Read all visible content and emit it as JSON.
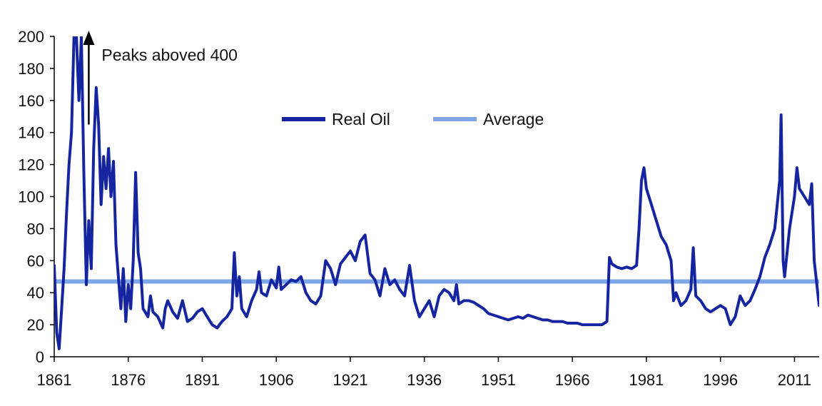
{
  "chart_data": {
    "type": "line",
    "title": "",
    "xlabel": "",
    "ylabel": "",
    "xlim": [
      1861,
      2016
    ],
    "ylim": [
      0,
      200
    ],
    "x_ticks": [
      1861,
      1876,
      1891,
      1906,
      1921,
      1936,
      1951,
      1966,
      1981,
      1996,
      2011
    ],
    "y_ticks": [
      0,
      20,
      40,
      60,
      80,
      100,
      120,
      140,
      160,
      180,
      200
    ],
    "grid": false,
    "legend": {
      "placement": "top-center"
    },
    "annotation": {
      "text": "Peaks aboved 400",
      "x": 1868,
      "y": 145,
      "arrow": "up"
    },
    "series": [
      {
        "name": "Real Oil",
        "color": "#1525a0",
        "points": [
          [
            1861,
            57
          ],
          [
            1861.5,
            15
          ],
          [
            1862,
            5
          ],
          [
            1862.5,
            30
          ],
          [
            1863,
            55
          ],
          [
            1863.5,
            90
          ],
          [
            1864,
            120
          ],
          [
            1864.5,
            140
          ],
          [
            1865,
            200
          ],
          [
            1865.5,
            200
          ],
          [
            1866,
            160
          ],
          [
            1866.5,
            200
          ],
          [
            1867,
            115
          ],
          [
            1867.5,
            45
          ],
          [
            1868,
            85
          ],
          [
            1868.5,
            55
          ],
          [
            1869,
            130
          ],
          [
            1869.5,
            168
          ],
          [
            1870,
            145
          ],
          [
            1870.5,
            95
          ],
          [
            1871,
            125
          ],
          [
            1871.5,
            105
          ],
          [
            1872,
            130
          ],
          [
            1872.5,
            100
          ],
          [
            1873,
            122
          ],
          [
            1873.5,
            70
          ],
          [
            1874,
            50
          ],
          [
            1874.5,
            30
          ],
          [
            1875,
            55
          ],
          [
            1875.5,
            22
          ],
          [
            1876,
            45
          ],
          [
            1876.5,
            30
          ],
          [
            1877,
            60
          ],
          [
            1877.5,
            115
          ],
          [
            1878,
            65
          ],
          [
            1878.5,
            55
          ],
          [
            1879,
            30
          ],
          [
            1880,
            25
          ],
          [
            1880.5,
            38
          ],
          [
            1881,
            28
          ],
          [
            1882,
            25
          ],
          [
            1883,
            18
          ],
          [
            1883.5,
            30
          ],
          [
            1884,
            35
          ],
          [
            1885,
            28
          ],
          [
            1886,
            24
          ],
          [
            1887,
            35
          ],
          [
            1888,
            22
          ],
          [
            1889,
            24
          ],
          [
            1890,
            28
          ],
          [
            1891,
            30
          ],
          [
            1892,
            25
          ],
          [
            1893,
            20
          ],
          [
            1894,
            18
          ],
          [
            1895,
            22
          ],
          [
            1896,
            25
          ],
          [
            1897,
            30
          ],
          [
            1897.5,
            65
          ],
          [
            1898,
            38
          ],
          [
            1898.5,
            50
          ],
          [
            1899,
            30
          ],
          [
            1900,
            25
          ],
          [
            1901,
            35
          ],
          [
            1902,
            42
          ],
          [
            1902.5,
            53
          ],
          [
            1903,
            40
          ],
          [
            1904,
            38
          ],
          [
            1905,
            48
          ],
          [
            1906,
            43
          ],
          [
            1906.5,
            56
          ],
          [
            1907,
            42
          ],
          [
            1908,
            45
          ],
          [
            1909,
            48
          ],
          [
            1910,
            47
          ],
          [
            1911,
            50
          ],
          [
            1912,
            40
          ],
          [
            1913,
            35
          ],
          [
            1914,
            33
          ],
          [
            1915,
            38
          ],
          [
            1916,
            60
          ],
          [
            1917,
            55
          ],
          [
            1918,
            45
          ],
          [
            1919,
            58
          ],
          [
            1920,
            62
          ],
          [
            1921,
            66
          ],
          [
            1922,
            60
          ],
          [
            1923,
            72
          ],
          [
            1924,
            76
          ],
          [
            1925,
            52
          ],
          [
            1926,
            48
          ],
          [
            1927,
            38
          ],
          [
            1928,
            55
          ],
          [
            1929,
            45
          ],
          [
            1930,
            48
          ],
          [
            1931,
            42
          ],
          [
            1932,
            38
          ],
          [
            1933,
            57
          ],
          [
            1934,
            35
          ],
          [
            1935,
            25
          ],
          [
            1936,
            30
          ],
          [
            1937,
            35
          ],
          [
            1938,
            25
          ],
          [
            1939,
            38
          ],
          [
            1940,
            42
          ],
          [
            1941,
            40
          ],
          [
            1942,
            35
          ],
          [
            1942.5,
            45
          ],
          [
            1943,
            33
          ],
          [
            1944,
            35
          ],
          [
            1945,
            35
          ],
          [
            1946,
            34
          ],
          [
            1947,
            32
          ],
          [
            1948,
            30
          ],
          [
            1949,
            27
          ],
          [
            1950,
            26
          ],
          [
            1951,
            25
          ],
          [
            1952,
            24
          ],
          [
            1953,
            23
          ],
          [
            1954,
            24
          ],
          [
            1955,
            25
          ],
          [
            1956,
            24
          ],
          [
            1957,
            26
          ],
          [
            1958,
            25
          ],
          [
            1959,
            24
          ],
          [
            1960,
            23
          ],
          [
            1961,
            23
          ],
          [
            1962,
            22
          ],
          [
            1963,
            22
          ],
          [
            1964,
            22
          ],
          [
            1965,
            21
          ],
          [
            1966,
            21
          ],
          [
            1967,
            21
          ],
          [
            1968,
            20
          ],
          [
            1969,
            20
          ],
          [
            1970,
            20
          ],
          [
            1971,
            20
          ],
          [
            1972,
            20
          ],
          [
            1973,
            22
          ],
          [
            1973.5,
            62
          ],
          [
            1974,
            58
          ],
          [
            1975,
            56
          ],
          [
            1976,
            55
          ],
          [
            1977,
            56
          ],
          [
            1978,
            55
          ],
          [
            1979,
            57
          ],
          [
            1979.5,
            80
          ],
          [
            1980,
            110
          ],
          [
            1980.5,
            118
          ],
          [
            1981,
            105
          ],
          [
            1982,
            95
          ],
          [
            1983,
            85
          ],
          [
            1984,
            75
          ],
          [
            1985,
            70
          ],
          [
            1986,
            60
          ],
          [
            1986.5,
            35
          ],
          [
            1987,
            40
          ],
          [
            1988,
            32
          ],
          [
            1989,
            35
          ],
          [
            1990,
            42
          ],
          [
            1990.5,
            68
          ],
          [
            1991,
            38
          ],
          [
            1992,
            35
          ],
          [
            1993,
            30
          ],
          [
            1994,
            28
          ],
          [
            1995,
            30
          ],
          [
            1996,
            32
          ],
          [
            1997,
            30
          ],
          [
            1998,
            20
          ],
          [
            1999,
            25
          ],
          [
            2000,
            38
          ],
          [
            2001,
            32
          ],
          [
            2002,
            35
          ],
          [
            2003,
            42
          ],
          [
            2004,
            50
          ],
          [
            2005,
            62
          ],
          [
            2006,
            70
          ],
          [
            2007,
            80
          ],
          [
            2008,
            110
          ],
          [
            2008.3,
            151
          ],
          [
            2008.7,
            60
          ],
          [
            2009,
            50
          ],
          [
            2010,
            80
          ],
          [
            2011,
            100
          ],
          [
            2011.5,
            118
          ],
          [
            2012,
            105
          ],
          [
            2013,
            100
          ],
          [
            2014,
            95
          ],
          [
            2014.5,
            108
          ],
          [
            2015,
            60
          ],
          [
            2016,
            32
          ]
        ]
      },
      {
        "name": "Average",
        "color": "#7fa6e6",
        "values": [
          47,
          47
        ]
      }
    ]
  }
}
